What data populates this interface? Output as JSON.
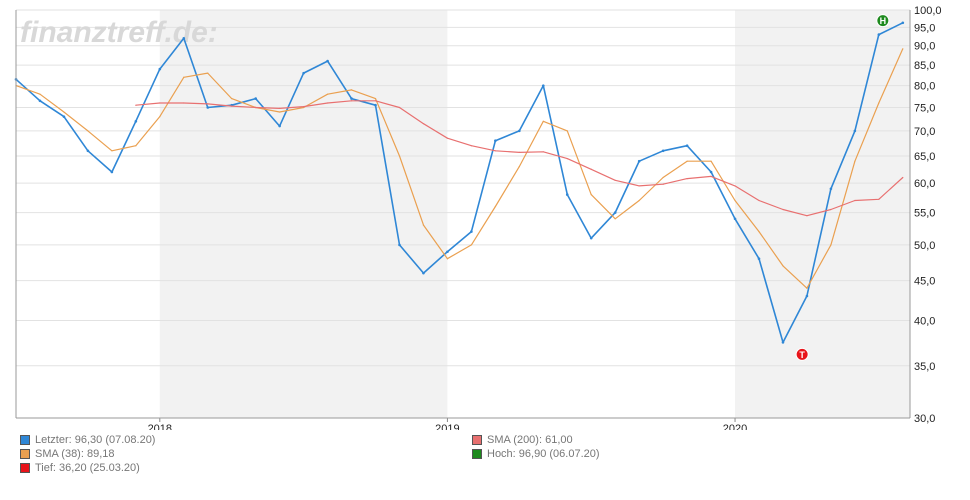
{
  "watermark": "finanztreff.de:",
  "colors": {
    "price": "#2f87d6",
    "sma38": "#eaa050",
    "sma200": "#e87070",
    "low": "#e8141a",
    "high": "#1e8a1e",
    "shade": "#f2f2f2",
    "grid": "#e2e2e2"
  },
  "legend": [
    {
      "label": "Letzter: 96,30 (07.08.20)",
      "color": "#2f87d6"
    },
    {
      "label": "SMA (200): 61,00",
      "color": "#e87070"
    },
    {
      "label": "SMA (38): 89,18",
      "color": "#eaa050"
    },
    {
      "label": "Hoch: 96,90 (06.07.20)",
      "color": "#1e8a1e"
    },
    {
      "label": "Tief: 36,20 (25.03.20)",
      "color": "#e8141a"
    }
  ],
  "chart_data": {
    "type": "line",
    "y_scale": "log",
    "ylim": [
      30,
      100
    ],
    "y_ticks": [
      "30,0",
      "35,0",
      "40,0",
      "45,0",
      "50,0",
      "55,0",
      "60,0",
      "65,0",
      "70,0",
      "75,0",
      "80,0",
      "85,0",
      "90,0",
      "95,0",
      "100,0"
    ],
    "y_tick_values": [
      30,
      35,
      40,
      45,
      50,
      55,
      60,
      65,
      70,
      75,
      80,
      85,
      90,
      95,
      100
    ],
    "x_ticks": [
      "2018",
      "2019",
      "2020"
    ],
    "x_range": [
      "2017-07",
      "2020-08"
    ],
    "grid": true,
    "markers": [
      {
        "label": "H",
        "date": "2020-07-06",
        "value": 96.9
      },
      {
        "label": "T",
        "date": "2020-03-25",
        "value": 36.2
      }
    ],
    "series": [
      {
        "name": "Letzter",
        "x": [
          "2017-07",
          "2017-08",
          "2017-09",
          "2017-10",
          "2017-11",
          "2017-12",
          "2018-01",
          "2018-02",
          "2018-03",
          "2018-04",
          "2018-05",
          "2018-06",
          "2018-07",
          "2018-08",
          "2018-09",
          "2018-10",
          "2018-11",
          "2018-12",
          "2019-01",
          "2019-02",
          "2019-03",
          "2019-04",
          "2019-05",
          "2019-06",
          "2019-07",
          "2019-08",
          "2019-09",
          "2019-10",
          "2019-11",
          "2019-12",
          "2020-01",
          "2020-02",
          "2020-03",
          "2020-04",
          "2020-05",
          "2020-06",
          "2020-07",
          "2020-08"
        ],
        "values": [
          81.5,
          76.5,
          73.0,
          66.0,
          62.0,
          72.0,
          84.0,
          92.0,
          75.0,
          75.5,
          77.0,
          71.0,
          83.0,
          86.0,
          77.0,
          75.5,
          50.0,
          46.0,
          49.0,
          52.0,
          68.0,
          70.0,
          80.0,
          58.0,
          51.0,
          55.0,
          64.0,
          66.0,
          67.0,
          62.0,
          54.0,
          48.0,
          37.5,
          43.0,
          59.0,
          70.0,
          93.0,
          96.3
        ]
      },
      {
        "name": "SMA (38)",
        "x": [
          "2017-07",
          "2017-08",
          "2017-09",
          "2017-10",
          "2017-11",
          "2017-12",
          "2018-01",
          "2018-02",
          "2018-03",
          "2018-04",
          "2018-05",
          "2018-06",
          "2018-07",
          "2018-08",
          "2018-09",
          "2018-10",
          "2018-11",
          "2018-12",
          "2019-01",
          "2019-02",
          "2019-03",
          "2019-04",
          "2019-05",
          "2019-06",
          "2019-07",
          "2019-08",
          "2019-09",
          "2019-10",
          "2019-11",
          "2019-12",
          "2020-01",
          "2020-02",
          "2020-03",
          "2020-04",
          "2020-05",
          "2020-06",
          "2020-07",
          "2020-08"
        ],
        "values": [
          80.0,
          78.0,
          74.0,
          70.0,
          66.0,
          67.0,
          73.0,
          82.0,
          83.0,
          77.0,
          75.0,
          74.0,
          75.0,
          78.0,
          79.0,
          77.0,
          65.0,
          53.0,
          48.0,
          50.0,
          56.0,
          63.0,
          72.0,
          70.0,
          58.0,
          54.0,
          57.0,
          61.0,
          64.0,
          64.0,
          57.0,
          52.0,
          47.0,
          44.0,
          50.0,
          64.0,
          76.0,
          89.18
        ]
      },
      {
        "name": "SMA (200)",
        "x": [
          "2017-12",
          "2018-01",
          "2018-02",
          "2018-03",
          "2018-04",
          "2018-05",
          "2018-06",
          "2018-07",
          "2018-08",
          "2018-09",
          "2018-10",
          "2018-11",
          "2018-12",
          "2019-01",
          "2019-02",
          "2019-03",
          "2019-04",
          "2019-05",
          "2019-06",
          "2019-07",
          "2019-08",
          "2019-09",
          "2019-10",
          "2019-11",
          "2019-12",
          "2020-01",
          "2020-02",
          "2020-03",
          "2020-04",
          "2020-05",
          "2020-06",
          "2020-07",
          "2020-08"
        ],
        "values": [
          75.5,
          76.0,
          76.0,
          75.8,
          75.3,
          75.0,
          74.8,
          75.2,
          76.0,
          76.5,
          76.5,
          75.0,
          71.5,
          68.5,
          67.0,
          66.0,
          65.7,
          65.8,
          64.5,
          62.5,
          60.5,
          59.5,
          59.8,
          60.8,
          61.2,
          59.5,
          57.0,
          55.5,
          54.5,
          55.5,
          57.0,
          57.2,
          61.0
        ]
      }
    ]
  }
}
